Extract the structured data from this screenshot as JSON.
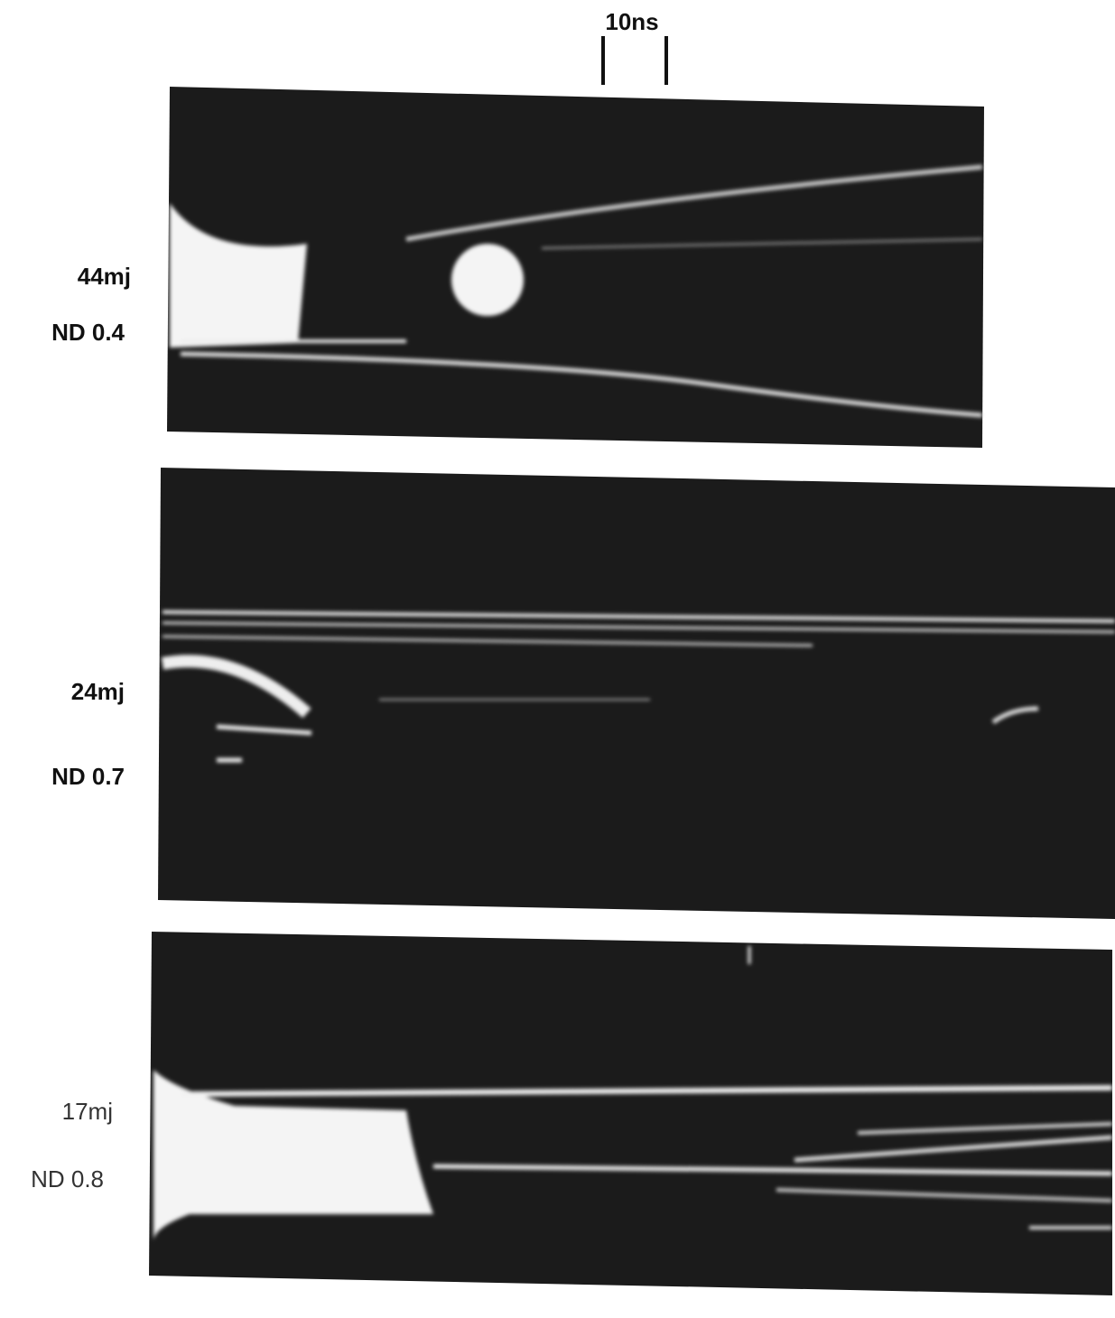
{
  "scale_bar": {
    "label": "10ns"
  },
  "panels": [
    {
      "energy": "44mj",
      "filter": "ND 0.4"
    },
    {
      "energy": "24mj",
      "filter": "ND 0.7"
    },
    {
      "energy": "17mj",
      "filter": "ND 0.8"
    }
  ]
}
